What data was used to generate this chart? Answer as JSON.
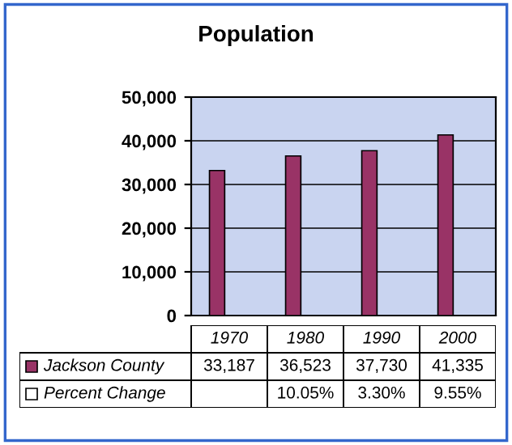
{
  "chart_data": {
    "type": "bar",
    "title": "Population",
    "categories": [
      "1970",
      "1980",
      "1990",
      "2000"
    ],
    "series": [
      {
        "name": "Jackson County",
        "color": "#993366",
        "values": [
          33187,
          36523,
          37730,
          41335
        ],
        "value_labels": [
          "33,187",
          "36,523",
          "37,730",
          "41,335"
        ]
      },
      {
        "name": "Percent Change",
        "color": "#ffffff",
        "values": [
          null,
          10.05,
          3.3,
          9.55
        ],
        "value_labels": [
          null,
          "10.05%",
          "3.30%",
          "9.55%"
        ]
      }
    ],
    "ylim": [
      0,
      50000
    ],
    "yticks": [
      {
        "value": 0,
        "label": "0"
      },
      {
        "value": 10000,
        "label": "10,000"
      },
      {
        "value": 20000,
        "label": "20,000"
      },
      {
        "value": 30000,
        "label": "30,000"
      },
      {
        "value": 40000,
        "label": "40,000"
      },
      {
        "value": 50000,
        "label": "50,000"
      }
    ],
    "grid": "y",
    "legend": "bottom"
  }
}
